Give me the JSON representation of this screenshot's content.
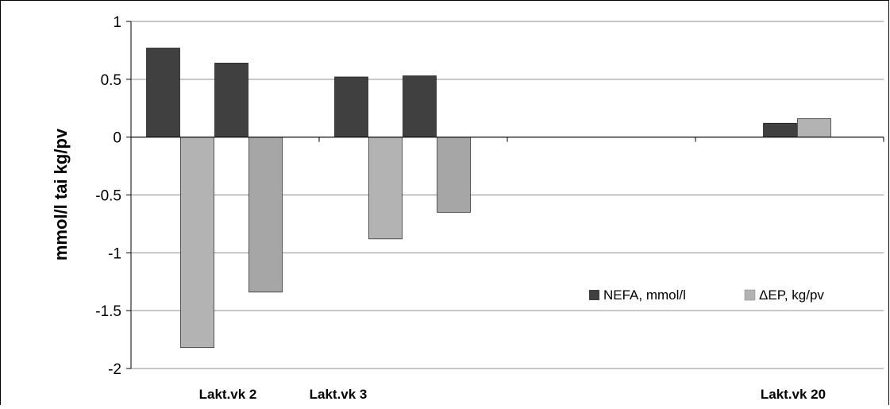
{
  "chart_data": {
    "type": "bar",
    "ylabel": "mmol/l tai kg/pv",
    "ylim": [
      -2,
      1
    ],
    "yticks": [
      1,
      0.5,
      0,
      -0.5,
      -1,
      -1.5,
      -2
    ],
    "ytick_labels": [
      "1",
      "0.5",
      "0",
      "-0.5",
      "-1",
      "-1.5",
      "-2"
    ],
    "grid": true,
    "legend_position": "lower-right",
    "categories": [
      "Lakt.vk 2",
      "Lakt.vk 3",
      "",
      "Lakt.vk 20"
    ],
    "series": [
      {
        "name": "NEFA, mmol/l",
        "color": "#404040",
        "values": [
          0.77,
          0.52,
          null,
          0.12
        ]
      },
      {
        "name": "ΔEP, kg/pv",
        "color": "#b3b3b3",
        "values": [
          -1.82,
          -0.88,
          null,
          0.16
        ]
      },
      {
        "name": "",
        "color": "#404040",
        "values": [
          0.64,
          0.53,
          null,
          null
        ]
      },
      {
        "name": "",
        "color": "#a6a6a6",
        "values": [
          -1.34,
          -0.65,
          null,
          null
        ]
      }
    ],
    "legend": [
      {
        "label": "NEFA, mmol/l",
        "color": "#404040"
      },
      {
        "label": "ΔEP, kg/pv",
        "color": "#b3b3b3"
      }
    ]
  }
}
